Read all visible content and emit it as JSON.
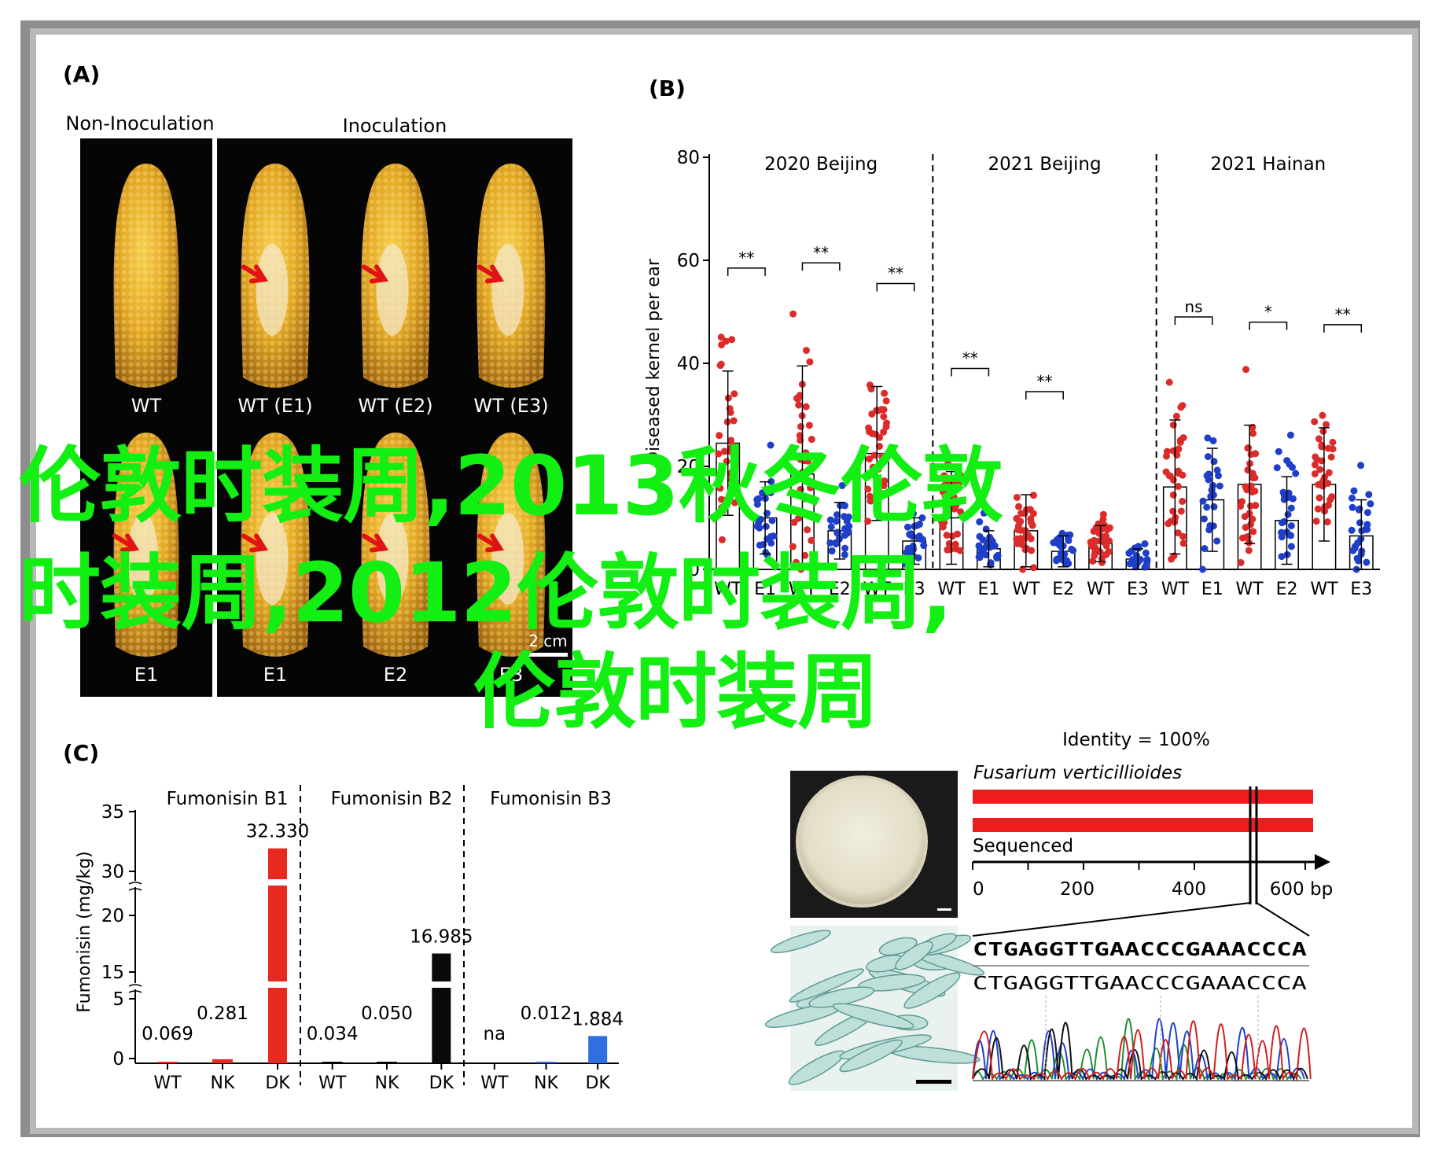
{
  "panel_a": {
    "label": "(A)",
    "group_non": "Non-Inoculation",
    "group_ino": "Inoculation",
    "ears_top": [
      "WT",
      "WT (E1)",
      "WT (E2)",
      "WT (E3)"
    ],
    "ears_bottom": [
      "E1",
      "E1",
      "E2",
      "E3"
    ],
    "scale": "2 cm"
  },
  "panel_b": {
    "label": "(B)",
    "ylabel": "Diseased kernel per ear",
    "colors": {
      "wt": "#dc2b2b",
      "mut": "#1f3fc8",
      "bar_fill": "#ffffff",
      "bar_stroke": "#000000"
    },
    "chart_data": {
      "type": "bar",
      "ylim": [
        0,
        80
      ],
      "yticks": [
        0,
        20,
        40,
        60,
        80
      ],
      "groups": [
        {
          "title": "2020 Beijing",
          "categories": [
            "WT",
            "E1",
            "WT",
            "E2",
            "WT",
            "E3"
          ],
          "values": [
            24.5,
            10,
            18.5,
            7.5,
            22.5,
            5.5
          ],
          "errors": [
            14,
            7,
            21,
            5.5,
            13,
            4.5
          ],
          "significance": [
            {
              "pair": [
                0,
                1
              ],
              "text": "**"
            },
            {
              "pair": [
                2,
                3
              ],
              "text": "**"
            },
            {
              "pair": [
                4,
                5
              ],
              "text": "**"
            }
          ]
        },
        {
          "title": "2021 Beijing",
          "categories": [
            "WT",
            "E1",
            "WT",
            "E2",
            "WT",
            "E3"
          ],
          "values": [
            10,
            4,
            7.5,
            3.5,
            5,
            2
          ],
          "errors": [
            9,
            3.5,
            7,
            3,
            3.5,
            2
          ],
          "significance": [
            {
              "pair": [
                0,
                1
              ],
              "text": "**"
            },
            {
              "pair": [
                2,
                3
              ],
              "text": "**"
            }
          ]
        },
        {
          "title": "2021 Hainan",
          "categories": [
            "WT",
            "E1",
            "WT",
            "E2",
            "WT",
            "E3"
          ],
          "values": [
            16,
            13.5,
            16.5,
            9.5,
            16.5,
            6.5
          ],
          "errors": [
            13,
            10,
            11.5,
            8.5,
            11,
            7
          ],
          "significance": [
            {
              "pair": [
                0,
                1
              ],
              "text": "ns"
            },
            {
              "pair": [
                2,
                3
              ],
              "text": "*"
            },
            {
              "pair": [
                4,
                5
              ],
              "text": "**"
            }
          ]
        }
      ]
    }
  },
  "panel_c": {
    "label": "(C)",
    "ylabel": "Fumonisin (mg/kg)",
    "colors": {
      "nk": "#e8291f",
      "dk": "#0a0a0a",
      "b3dk": "#2f6fe0"
    },
    "chart_data": {
      "type": "bar",
      "yticks": [
        "0",
        "5",
        "15",
        "20",
        "30",
        "35"
      ],
      "groups": [
        {
          "title": "Fumonisin B1",
          "categories": [
            "WT",
            "NK",
            "DK"
          ],
          "values": [
            0.069,
            0.281,
            32.33
          ],
          "labels": [
            "0.069",
            "0.281",
            "32.330"
          ]
        },
        {
          "title": "Fumonisin B2",
          "categories": [
            "WT",
            "NK",
            "DK"
          ],
          "values": [
            0.034,
            0.05,
            16.985
          ],
          "labels": [
            "0.034",
            "0.050",
            "16.985"
          ]
        },
        {
          "title": "Fumonisin B3",
          "categories": [
            "WT",
            "NK",
            "DK"
          ],
          "values": [
            null,
            0.012,
            1.884
          ],
          "labels": [
            "na",
            "0.012",
            "1.884"
          ]
        }
      ]
    }
  },
  "panel_d": {
    "identity": "Identity = 100%",
    "organism": "Fusarium verticillioides",
    "sequenced": "Sequenced",
    "axis_ticks": [
      "0",
      "200",
      "400",
      "600 bp"
    ],
    "seq1": "CTGAGGTTGAACCCGAAACCCA",
    "seq2": "CTGAGGTTGAACCCGAAACCCA"
  },
  "watermark": {
    "line1": "伦敦时装周,2013秋冬伦敦",
    "line2": "时装周,2012伦敦时装周,",
    "line3": "伦敦时装周"
  }
}
